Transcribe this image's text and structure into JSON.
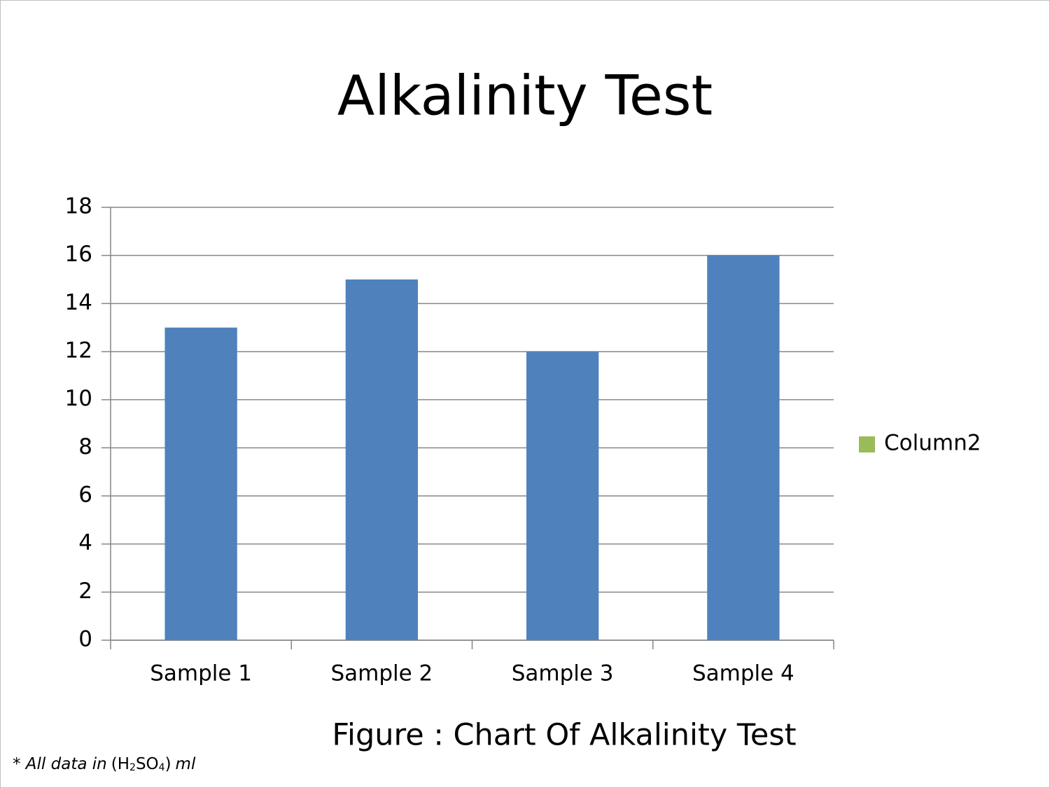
{
  "chart_data": {
    "type": "bar",
    "title": "Alkalinity Test",
    "categories": [
      "Sample 1",
      "Sample 2",
      "Sample 3",
      "Sample 4"
    ],
    "values": [
      13,
      15,
      12,
      16
    ],
    "color": "#4f81bd",
    "ylim": [
      0,
      18
    ],
    "yticks": [
      0,
      2,
      4,
      6,
      8,
      10,
      12,
      14,
      16,
      18
    ],
    "grid": true,
    "legend": [
      {
        "name": "Column2",
        "color": "#9bbb59"
      }
    ],
    "legend_position": "right",
    "caption": "Figure : Chart  Of Alkalinity Test",
    "footnote": {
      "lead": "* All data in",
      "formula": [
        "(H",
        "2",
        "SO",
        "4",
        ")"
      ],
      "unit": "ml"
    }
  }
}
